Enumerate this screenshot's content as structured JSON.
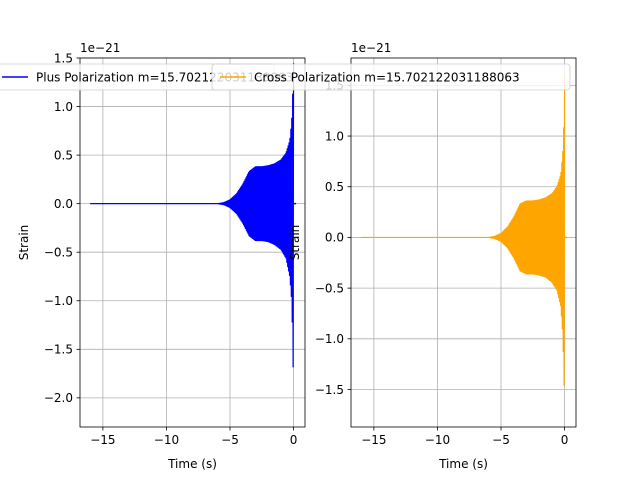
{
  "chart_data": [
    {
      "type": "line",
      "title": "",
      "xlabel": "Time (s)",
      "ylabel": "Strain",
      "offset_text": "1e−21",
      "xlim": [
        -16.8,
        0.9
      ],
      "ylim": [
        -2.3,
        1.5
      ],
      "xticks": [
        -15,
        -10,
        -5,
        0
      ],
      "xtick_labels": [
        "−15",
        "−10",
        "−5",
        "0"
      ],
      "yticks": [
        -2.0,
        -1.5,
        -1.0,
        -0.5,
        0.0,
        0.5,
        1.0,
        1.5
      ],
      "ytick_labels": [
        "−2.0",
        "−1.5",
        "−1.0",
        "−0.5",
        "0.0",
        "0.5",
        "1.0",
        "1.5"
      ],
      "grid": true,
      "legend_position": "top",
      "series": [
        {
          "name": "Plus Polarization m=15.702122031188063",
          "color": "#0000ff",
          "envelope": {
            "t": [
              -16.0,
              -6.0,
              -5.5,
              -5.0,
              -4.5,
              -4.0,
              -3.5,
              -3.0,
              -2.5,
              -2.0,
              -1.5,
              -1.0,
              -0.6,
              -0.3,
              -0.15,
              -0.05,
              0.0
            ],
            "upper": [
              0.0,
              0.0,
              0.01,
              0.04,
              0.1,
              0.2,
              0.33,
              0.38,
              0.38,
              0.39,
              0.41,
              0.45,
              0.52,
              0.65,
              0.85,
              1.2,
              1.45
            ],
            "lower": [
              0.0,
              0.0,
              -0.01,
              -0.04,
              -0.1,
              -0.2,
              -0.33,
              -0.38,
              -0.38,
              -0.39,
              -0.42,
              -0.47,
              -0.56,
              -0.75,
              -1.0,
              -1.5,
              -2.12
            ]
          },
          "post_merger": {
            "t": [
              0.0,
              0.2
            ],
            "value": 0.0
          }
        }
      ]
    },
    {
      "type": "line",
      "title": "",
      "xlabel": "Time (s)",
      "ylabel": "Strain",
      "offset_text": "1e−21",
      "xlim": [
        -16.8,
        0.9
      ],
      "ylim": [
        -1.87,
        1.77
      ],
      "xticks": [
        -15,
        -10,
        -5,
        0
      ],
      "xtick_labels": [
        "−15",
        "−10",
        "−5",
        "0"
      ],
      "yticks": [
        -1.5,
        -1.0,
        -0.5,
        0.0,
        0.5,
        1.0,
        1.5
      ],
      "ytick_labels": [
        "−1.5",
        "−1.0",
        "−0.5",
        "0.0",
        "0.5",
        "1.0",
        "1.5"
      ],
      "grid": true,
      "legend_position": "top",
      "series": [
        {
          "name": "Cross Polarization m=15.702122031188063",
          "color": "#ffa500",
          "envelope": {
            "t": [
              -16.0,
              -6.0,
              -5.5,
              -5.0,
              -4.5,
              -4.0,
              -3.5,
              -3.0,
              -2.5,
              -2.0,
              -1.5,
              -1.0,
              -0.6,
              -0.3,
              -0.15,
              -0.05,
              0.0
            ],
            "upper": [
              0.0,
              0.0,
              0.01,
              0.04,
              0.1,
              0.2,
              0.33,
              0.36,
              0.36,
              0.37,
              0.39,
              0.43,
              0.5,
              0.62,
              0.82,
              1.15,
              1.6
            ],
            "lower": [
              0.0,
              0.0,
              -0.01,
              -0.04,
              -0.1,
              -0.2,
              -0.33,
              -0.36,
              -0.36,
              -0.37,
              -0.39,
              -0.44,
              -0.52,
              -0.68,
              -0.95,
              -1.35,
              -1.72
            ]
          },
          "post_merger": {
            "t": [
              0.0,
              0.2
            ],
            "value": 0.0
          }
        }
      ]
    }
  ]
}
